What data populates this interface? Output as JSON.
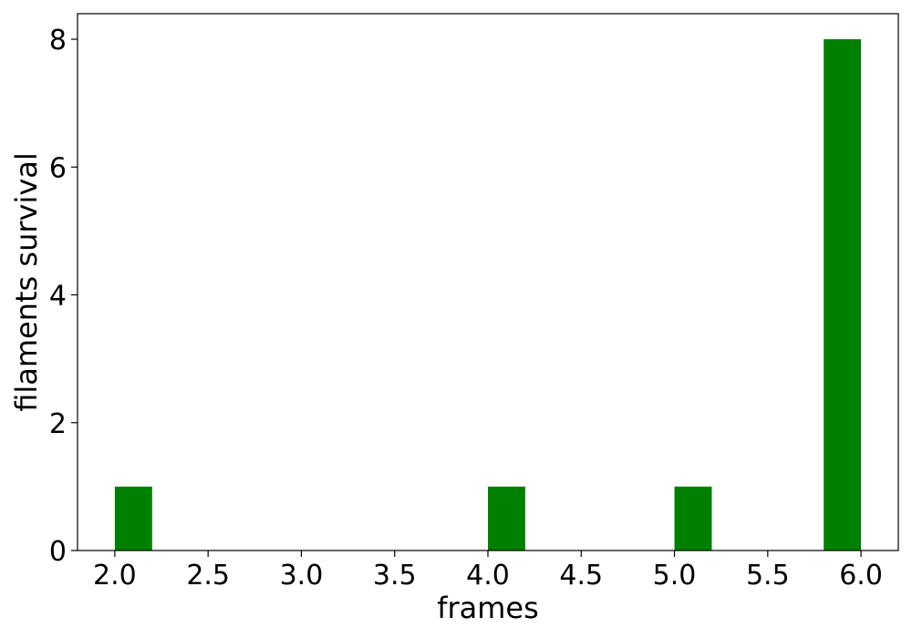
{
  "chart_data": {
    "type": "bar",
    "xlabel": "frames",
    "ylabel": "filaments survival",
    "xlim": [
      1.8,
      6.2
    ],
    "ylim": [
      0,
      8.4
    ],
    "xticks": [
      "2.0",
      "2.5",
      "3.0",
      "3.5",
      "4.0",
      "4.5",
      "5.0",
      "5.5",
      "6.0"
    ],
    "yticks": [
      "0",
      "2",
      "4",
      "6",
      "8"
    ],
    "bin_width": 0.2,
    "bars": [
      {
        "x_start": 2.0,
        "x_end": 2.2,
        "value": 1
      },
      {
        "x_start": 4.0,
        "x_end": 4.2,
        "value": 1
      },
      {
        "x_start": 5.0,
        "x_end": 5.2,
        "value": 1
      },
      {
        "x_start": 5.8,
        "x_end": 6.0,
        "value": 8
      }
    ],
    "bar_color": "#008000",
    "grid": false
  }
}
